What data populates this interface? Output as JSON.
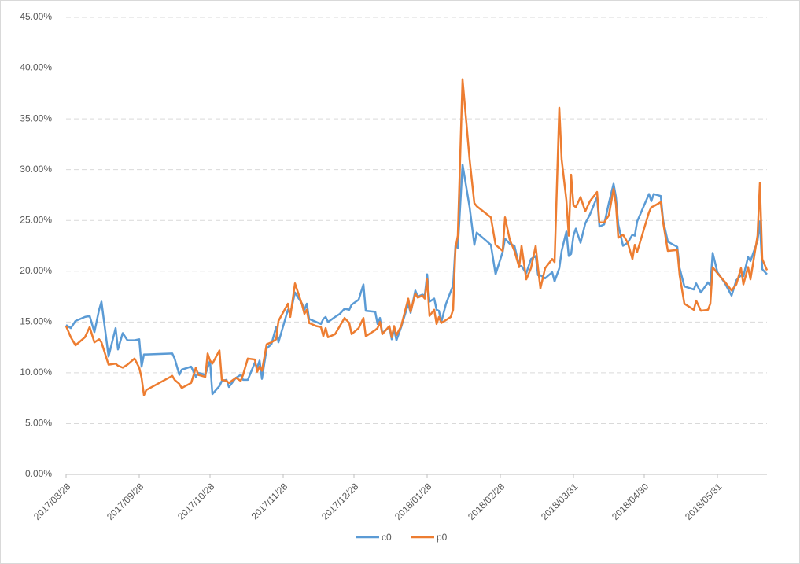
{
  "chart_data": {
    "type": "line",
    "x": [
      "2017/08/28",
      "2017/08/30",
      "2017/09/01",
      "2017/09/05",
      "2017/09/07",
      "2017/09/09",
      "2017/09/11",
      "2017/09/12",
      "2017/09/15",
      "2017/09/18",
      "2017/09/19",
      "2017/09/21",
      "2017/09/23",
      "2017/09/26",
      "2017/09/28",
      "2017/09/29",
      "2017/09/30",
      "2017/10/01",
      "2017/10/12",
      "2017/10/13",
      "2017/10/15",
      "2017/10/16",
      "2017/10/20",
      "2017/10/22",
      "2017/10/23",
      "2017/10/26",
      "2017/10/27",
      "2017/10/28",
      "2017/10/29",
      "2017/11/01",
      "2017/11/02",
      "2017/11/04",
      "2017/11/05",
      "2017/11/08",
      "2017/11/10",
      "2017/11/11",
      "2017/11/13",
      "2017/11/16",
      "2017/11/17",
      "2017/11/18",
      "2017/11/19",
      "2017/11/21",
      "2017/11/23",
      "2017/11/25",
      "2017/11/26",
      "2017/11/30",
      "2017/12/01",
      "2017/12/03",
      "2017/12/06",
      "2017/12/07",
      "2017/12/08",
      "2017/12/09",
      "2017/12/12",
      "2017/12/14",
      "2017/12/15",
      "2017/12/16",
      "2017/12/17",
      "2017/12/20",
      "2017/12/22",
      "2017/12/24",
      "2017/12/26",
      "2017/12/27",
      "2017/12/30",
      "2018/01/01",
      "2018/01/02",
      "2018/01/06",
      "2018/01/07",
      "2018/01/08",
      "2018/01/09",
      "2018/01/12",
      "2018/01/13",
      "2018/01/14",
      "2018/01/15",
      "2018/01/17",
      "2018/01/20",
      "2018/01/21",
      "2018/01/23",
      "2018/01/24",
      "2018/01/26",
      "2018/01/27",
      "2018/01/28",
      "2018/01/29",
      "2018/01/31",
      "2018/02/01",
      "2018/02/02",
      "2018/02/03",
      "2018/02/05",
      "2018/02/07",
      "2018/02/08",
      "2018/02/09",
      "2018/02/10",
      "2018/02/12",
      "2018/02/15",
      "2018/02/17",
      "2018/02/18",
      "2018/02/24",
      "2018/02/26",
      "2018/03/01",
      "2018/03/02",
      "2018/03/04",
      "2018/03/06",
      "2018/03/08",
      "2018/03/09",
      "2018/03/11",
      "2018/03/13",
      "2018/03/15",
      "2018/03/16",
      "2018/03/17",
      "2018/03/19",
      "2018/03/22",
      "2018/03/23",
      "2018/03/25",
      "2018/03/26",
      "2018/03/28",
      "2018/03/29",
      "2018/03/30",
      "2018/03/31",
      "2018/04/01",
      "2018/04/02",
      "2018/04/03",
      "2018/04/05",
      "2018/04/07",
      "2018/04/10",
      "2018/04/11",
      "2018/04/13",
      "2018/04/15",
      "2018/04/17",
      "2018/04/18",
      "2018/04/19",
      "2018/04/21",
      "2018/04/23",
      "2018/04/25",
      "2018/04/26",
      "2018/04/27",
      "2018/05/02",
      "2018/05/03",
      "2018/05/04",
      "2018/05/07",
      "2018/05/08",
      "2018/05/10",
      "2018/05/14",
      "2018/05/15",
      "2018/05/17",
      "2018/05/21",
      "2018/05/22",
      "2018/05/24",
      "2018/05/27",
      "2018/05/28",
      "2018/05/29",
      "2018/05/31",
      "2018/06/03",
      "2018/06/06",
      "2018/06/08",
      "2018/06/10",
      "2018/06/11",
      "2018/06/13",
      "2018/06/14",
      "2018/06/17",
      "2018/06/18",
      "2018/06/19",
      "2018/06/21"
    ],
    "series": [
      {
        "name": "c0",
        "color": "#5b9bd5",
        "values": [
          14.7,
          14.4,
          15.1,
          15.5,
          15.6,
          14.0,
          16.2,
          17.0,
          11.6,
          14.4,
          12.3,
          13.9,
          13.2,
          13.2,
          13.3,
          10.6,
          11.8,
          11.8,
          11.9,
          11.4,
          9.8,
          10.3,
          10.6,
          9.6,
          10.0,
          9.8,
          10.5,
          11.2,
          7.9,
          8.7,
          9.2,
          9.3,
          8.6,
          9.5,
          9.8,
          9.3,
          9.3,
          11.0,
          10.5,
          11.2,
          9.4,
          12.4,
          12.8,
          14.5,
          13.0,
          16.2,
          15.8,
          17.9,
          16.8,
          16.2,
          16.8,
          15.3,
          15.0,
          14.8,
          15.3,
          15.5,
          15.0,
          15.5,
          15.8,
          16.3,
          16.2,
          16.7,
          17.2,
          18.7,
          16.1,
          16.0,
          14.8,
          15.4,
          13.9,
          14.5,
          13.3,
          14.3,
          13.2,
          14.5,
          16.8,
          15.9,
          18.1,
          17.5,
          17.7,
          17.6,
          19.7,
          17.0,
          17.3,
          16.2,
          16.1,
          15.0,
          16.8,
          18.0,
          18.6,
          22.5,
          22.3,
          30.5,
          26.3,
          22.6,
          23.8,
          22.6,
          19.7,
          21.9,
          23.2,
          22.7,
          22.5,
          20.5,
          20.5,
          19.8,
          21.2,
          21.5,
          19.6,
          19.6,
          19.3,
          19.9,
          19.0,
          20.3,
          22.0,
          23.9,
          21.5,
          21.7,
          23.5,
          24.2,
          23.5,
          22.8,
          24.7,
          25.6,
          27.3,
          24.4,
          24.6,
          26.7,
          28.6,
          27.3,
          24.6,
          22.5,
          22.8,
          23.6,
          23.5,
          24.9,
          27.6,
          26.9,
          27.6,
          27.4,
          25.0,
          22.9,
          22.4,
          20.3,
          18.5,
          18.2,
          18.8,
          17.9,
          18.9,
          18.6,
          21.8,
          19.9,
          18.9,
          17.6,
          19.1,
          19.6,
          19.5,
          21.4,
          21.0,
          23.0,
          24.9,
          20.2,
          19.7
        ]
      },
      {
        "name": "p0",
        "color": "#ed7d31",
        "values": [
          14.6,
          13.5,
          12.7,
          13.5,
          14.5,
          13.0,
          13.3,
          13.0,
          10.8,
          10.9,
          10.7,
          10.5,
          10.8,
          11.4,
          10.5,
          9.5,
          7.8,
          8.3,
          9.7,
          9.3,
          8.9,
          8.5,
          9.0,
          10.5,
          9.8,
          9.6,
          11.9,
          11.2,
          10.9,
          12.2,
          9.3,
          9.2,
          9.0,
          9.5,
          9.2,
          9.8,
          11.4,
          11.3,
          10.1,
          10.6,
          10.2,
          12.8,
          13.0,
          13.3,
          15.1,
          16.8,
          15.5,
          18.8,
          16.7,
          15.8,
          16.2,
          14.9,
          14.6,
          14.5,
          13.6,
          14.4,
          13.5,
          13.8,
          14.6,
          15.4,
          14.9,
          13.8,
          14.4,
          15.4,
          13.6,
          14.2,
          14.4,
          15.0,
          13.8,
          14.6,
          13.5,
          14.6,
          13.7,
          14.6,
          17.3,
          16.0,
          17.8,
          17.4,
          17.6,
          17.3,
          19.2,
          15.6,
          16.2,
          14.8,
          15.5,
          14.9,
          15.2,
          15.5,
          16.2,
          22.2,
          23.5,
          38.9,
          31.0,
          26.7,
          26.4,
          25.3,
          22.6,
          22.0,
          25.3,
          23.1,
          22.0,
          20.4,
          22.5,
          19.2,
          20.3,
          22.5,
          20.3,
          18.3,
          20.3,
          21.2,
          20.9,
          36.1,
          31.0,
          27.0,
          23.5,
          29.5,
          26.5,
          26.3,
          26.8,
          27.3,
          25.9,
          26.9,
          27.8,
          24.8,
          24.8,
          25.5,
          28.1,
          26.6,
          23.3,
          23.6,
          22.8,
          21.2,
          22.6,
          21.9,
          25.8,
          26.3,
          26.4,
          26.8,
          24.8,
          22.0,
          22.1,
          19.6,
          16.8,
          16.2,
          17.1,
          16.1,
          16.2,
          16.8,
          20.4,
          19.8,
          19.0,
          18.1,
          18.7,
          20.3,
          18.7,
          20.4,
          19.2,
          23.5,
          28.7,
          21.2,
          20.1
        ]
      }
    ],
    "xlim": [
      "2017/08/28",
      "2018/06/21"
    ],
    "xticks": [
      "2017/08/28",
      "2017/09/28",
      "2017/10/28",
      "2017/11/28",
      "2017/12/28",
      "2018/01/28",
      "2018/02/28",
      "2018/03/31",
      "2018/04/30",
      "2018/05/31"
    ],
    "ylim": [
      0,
      45
    ],
    "yticks": [
      {
        "value": 0,
        "label": "0.00%"
      },
      {
        "value": 5,
        "label": "5.00%"
      },
      {
        "value": 10,
        "label": "10.00%"
      },
      {
        "value": 15,
        "label": "15.00%"
      },
      {
        "value": 20,
        "label": "20.00%"
      },
      {
        "value": 25,
        "label": "25.00%"
      },
      {
        "value": 30,
        "label": "30.00%"
      },
      {
        "value": 35,
        "label": "35.00%"
      },
      {
        "value": 40,
        "label": "40.00%"
      },
      {
        "value": 45,
        "label": "45.00%"
      }
    ],
    "grid": true,
    "legend": "bottom"
  }
}
